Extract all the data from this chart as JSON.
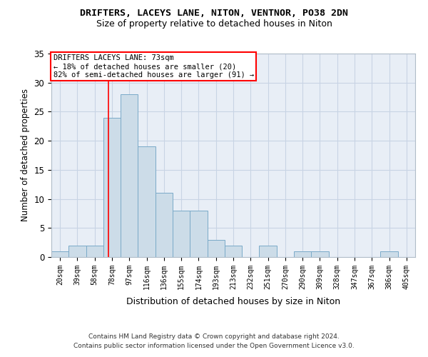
{
  "title1": "DRIFTERS, LACEYS LANE, NITON, VENTNOR, PO38 2DN",
  "title2": "Size of property relative to detached houses in Niton",
  "xlabel": "Distribution of detached houses by size in Niton",
  "ylabel": "Number of detached properties",
  "bin_labels": [
    "20sqm",
    "39sqm",
    "58sqm",
    "78sqm",
    "97sqm",
    "116sqm",
    "136sqm",
    "155sqm",
    "174sqm",
    "193sqm",
    "213sqm",
    "232sqm",
    "251sqm",
    "270sqm",
    "290sqm",
    "309sqm",
    "328sqm",
    "347sqm",
    "367sqm",
    "386sqm",
    "405sqm"
  ],
  "bar_heights": [
    1,
    2,
    2,
    24,
    28,
    19,
    11,
    8,
    8,
    3,
    2,
    0,
    2,
    0,
    1,
    1,
    0,
    0,
    0,
    1,
    0
  ],
  "bar_color": "#ccdce8",
  "bar_edge_color": "#7aaac8",
  "grid_color": "#c8d4e4",
  "background_color": "#e8eef6",
  "red_line_x": 2.78,
  "annotation_text": "DRIFTERS LACEYS LANE: 73sqm\n← 18% of detached houses are smaller (20)\n82% of semi-detached houses are larger (91) →",
  "annotation_box_color": "white",
  "annotation_box_edge": "red",
  "ylim": [
    0,
    35
  ],
  "yticks": [
    0,
    5,
    10,
    15,
    20,
    25,
    30,
    35
  ],
  "footer1": "Contains HM Land Registry data © Crown copyright and database right 2024.",
  "footer2": "Contains public sector information licensed under the Open Government Licence v3.0."
}
